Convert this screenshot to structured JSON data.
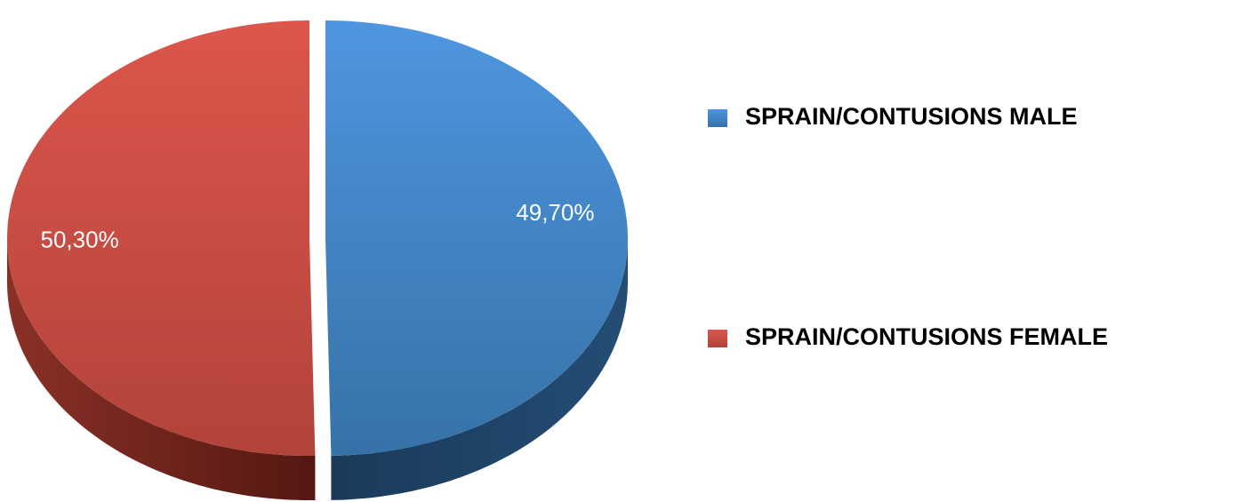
{
  "chart_data": {
    "type": "pie",
    "categories": [
      "SPRAIN/CONTUSIONS MALE",
      "SPRAIN/CONTUSIONS FEMALE"
    ],
    "values": [
      49.7,
      50.3
    ],
    "value_labels": [
      "49,70%",
      "50,30%"
    ],
    "colors": [
      "#4a8fd6",
      "#d4524a"
    ],
    "legend": "right"
  }
}
